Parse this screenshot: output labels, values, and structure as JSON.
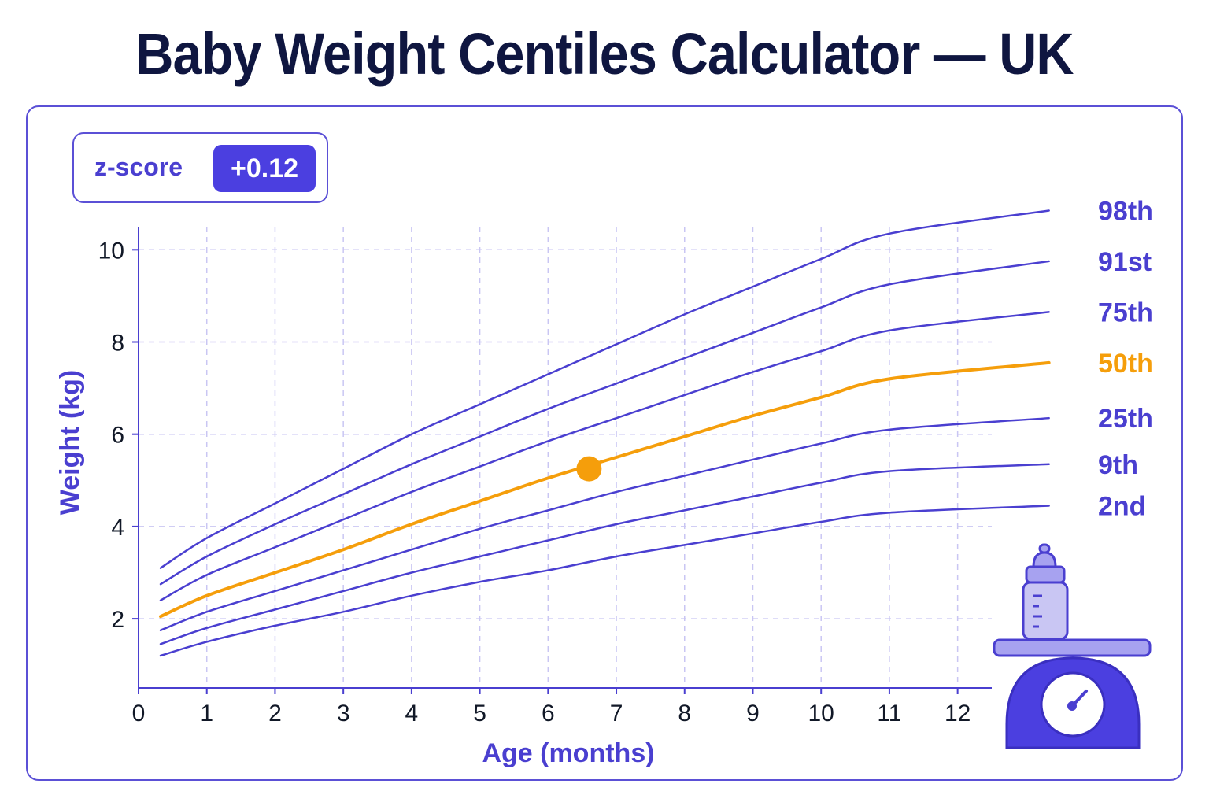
{
  "title": "Baby Weight Centiles Calculator — UK",
  "zscore": {
    "label": "z-score",
    "value": "+0.12"
  },
  "colors": {
    "primary": "#4a3fd0",
    "highlight": "#f59e0b",
    "text": "#0f1640",
    "grid": "#c9c6f3"
  },
  "icons": [
    "baby-bottle-icon",
    "weighing-scale-icon"
  ],
  "chart_data": {
    "type": "line",
    "title": "",
    "xlabel": "Age (months)",
    "ylabel": "Weight (kg)",
    "xlim": [
      0,
      12.5
    ],
    "ylim": [
      0.5,
      10.5
    ],
    "x_ticks": [
      0,
      1,
      2,
      3,
      4,
      5,
      6,
      7,
      8,
      9,
      10,
      11,
      12
    ],
    "y_ticks": [
      2,
      4,
      6,
      8,
      10
    ],
    "grid": true,
    "x": [
      0.3,
      1,
      2,
      3,
      4,
      5,
      6,
      7,
      8,
      9,
      10,
      11,
      12
    ],
    "series": [
      {
        "name": "98th",
        "highlight": false,
        "values": [
          3.1,
          3.75,
          4.5,
          5.25,
          6.0,
          6.65,
          7.3,
          7.95,
          8.6,
          9.2,
          9.8,
          10.35,
          10.85
        ]
      },
      {
        "name": "91st",
        "highlight": false,
        "values": [
          2.75,
          3.35,
          4.05,
          4.7,
          5.35,
          5.95,
          6.55,
          7.1,
          7.65,
          8.2,
          8.75,
          9.25,
          9.75
        ]
      },
      {
        "name": "75th",
        "highlight": false,
        "values": [
          2.4,
          2.95,
          3.55,
          4.15,
          4.75,
          5.3,
          5.85,
          6.35,
          6.85,
          7.35,
          7.8,
          8.25,
          8.65
        ]
      },
      {
        "name": "50th",
        "highlight": true,
        "values": [
          2.05,
          2.5,
          3.0,
          3.5,
          4.05,
          4.55,
          5.05,
          5.5,
          5.95,
          6.4,
          6.8,
          7.2,
          7.55
        ]
      },
      {
        "name": "25th",
        "highlight": false,
        "values": [
          1.75,
          2.15,
          2.6,
          3.05,
          3.5,
          3.95,
          4.35,
          4.75,
          5.1,
          5.45,
          5.8,
          6.1,
          6.35
        ]
      },
      {
        "name": "9th",
        "highlight": false,
        "values": [
          1.45,
          1.8,
          2.2,
          2.6,
          3.0,
          3.35,
          3.7,
          4.05,
          4.35,
          4.65,
          4.95,
          5.2,
          5.35
        ]
      },
      {
        "name": "2nd",
        "highlight": false,
        "values": [
          1.2,
          1.5,
          1.85,
          2.15,
          2.5,
          2.8,
          3.05,
          3.35,
          3.6,
          3.85,
          4.1,
          4.3,
          4.45
        ]
      }
    ],
    "marker": {
      "x": 6.6,
      "y": 5.25
    }
  }
}
